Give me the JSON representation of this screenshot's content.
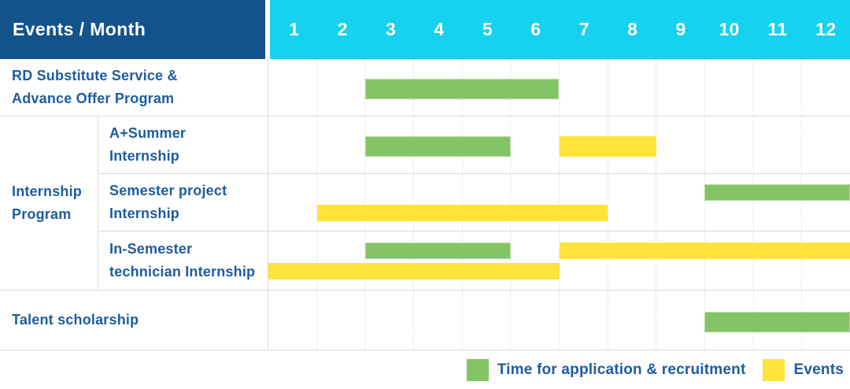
{
  "header": {
    "title": "Events / Month"
  },
  "colors": {
    "navy": "#13538c",
    "cyan": "#15d2f0",
    "green": "#85c464",
    "yellow": "#ffe23c",
    "label_text": "#1e5c9e",
    "grid_solid": "#dcdcdc",
    "grid_dashed": "#e3e3e3"
  },
  "chart_data": {
    "type": "bar",
    "subtype": "gantt-schedule",
    "title": "Events / Month",
    "x": {
      "label": "Month",
      "ticks": [
        "1",
        "2",
        "3",
        "4",
        "5",
        "6",
        "7",
        "8",
        "9",
        "10",
        "11",
        "12"
      ],
      "range": [
        1,
        12
      ]
    },
    "grid": true,
    "legend_position": "bottom-right",
    "legend": [
      {
        "name": "Time for application & recruitment",
        "color": "#85c464",
        "kind": "application"
      },
      {
        "name": "Events",
        "color": "#ffe23c",
        "kind": "event"
      }
    ],
    "rows": [
      {
        "label": "RD Substitute Service &\nAdvance Offer Program",
        "group": null,
        "bars": [
          {
            "series": "Time for application & recruitment",
            "start_month": 3,
            "end_month": 6,
            "lane": 0
          }
        ]
      },
      {
        "label": "A+Summer\nInternship",
        "group": "Internship\nProgram",
        "bars": [
          {
            "series": "Time for application & recruitment",
            "start_month": 3,
            "end_month": 5,
            "lane": 0
          },
          {
            "series": "Events",
            "start_month": 7,
            "end_month": 8,
            "lane": 0
          }
        ]
      },
      {
        "label": "Semester project\nInternship",
        "group": "Internship\nProgram",
        "bars": [
          {
            "series": "Time for application & recruitment",
            "start_month": 10,
            "end_month": 12,
            "lane": 0
          },
          {
            "series": "Events",
            "start_month": 2,
            "end_month": 7,
            "lane": 1
          }
        ]
      },
      {
        "label": "In-Semester\ntechnician Internship",
        "group": "Internship\nProgram",
        "bars": [
          {
            "series": "Time for application & recruitment",
            "start_month": 3,
            "end_month": 5,
            "lane": 0
          },
          {
            "series": "Events",
            "start_month": 7,
            "end_month": 12,
            "lane": 0
          },
          {
            "series": "Events",
            "start_month": 1,
            "end_month": 6,
            "lane": 1
          }
        ]
      },
      {
        "label": "Talent scholarship",
        "group": null,
        "bars": [
          {
            "series": "Time for application & recruitment",
            "start_month": 10,
            "end_month": 12,
            "lane": 0
          }
        ]
      }
    ]
  }
}
